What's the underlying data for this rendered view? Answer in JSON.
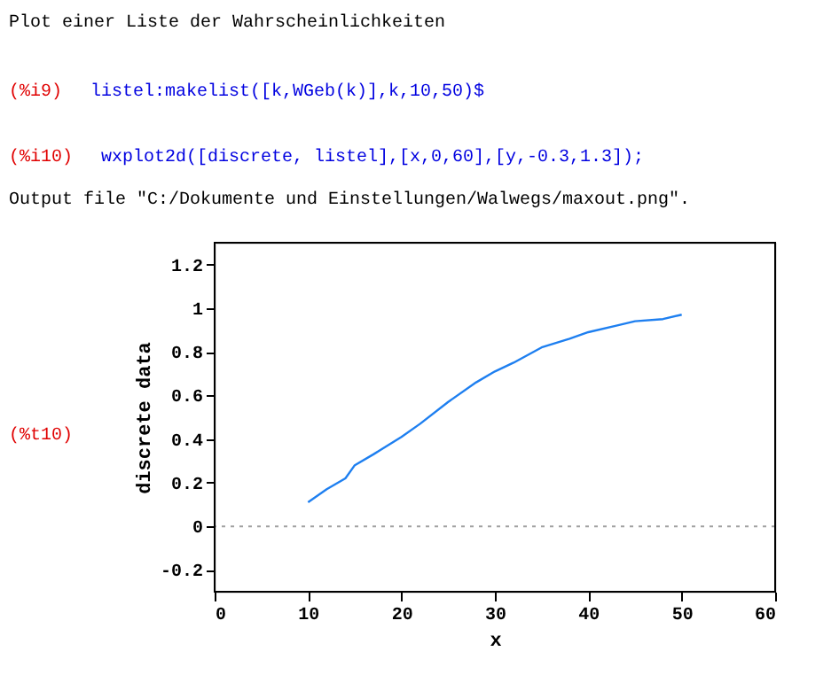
{
  "chart_data": {
    "type": "line",
    "title": "Plot einer Liste der Wahrscheinlichkeiten",
    "annotations": [
      "(%i9)",
      "listel:makelist([k,WGeb(k)],k,10,50)$",
      "(%i10)",
      "wxplot2d([discrete, listel],[x,0,60],[y,-0.3,1.3]);",
      "Output file \"C:/Dokumente und Einstellungen/Walwegs/maxout.png\".",
      "(%t10)"
    ],
    "xlabel": "x",
    "ylabel": "discrete data",
    "series": [
      {
        "color": "#1e7ff0",
        "x": [
          10,
          12,
          14,
          15,
          17,
          20,
          22,
          25,
          28,
          30,
          32,
          35,
          38,
          40,
          43,
          45,
          48,
          50
        ],
        "values": [
          0.11,
          0.17,
          0.22,
          0.28,
          0.33,
          0.41,
          0.47,
          0.57,
          0.66,
          0.71,
          0.75,
          0.82,
          0.86,
          0.89,
          0.92,
          0.94,
          0.95,
          0.97
        ]
      }
    ],
    "xlim": [
      0,
      60
    ],
    "xticks": [
      0,
      10,
      20,
      30,
      40,
      50,
      60
    ],
    "ylim": [
      -0.3,
      1.3
    ],
    "yticks": [
      -0.2,
      0,
      0.2,
      0.4,
      0.6,
      0.8,
      1,
      1.2
    ],
    "ref_lines": [
      {
        "axis": "y",
        "value": 0,
        "color": "#a0a0a0",
        "line_style": "dotted"
      }
    ],
    "grid": false,
    "line_style": "solid",
    "marker": "none"
  }
}
